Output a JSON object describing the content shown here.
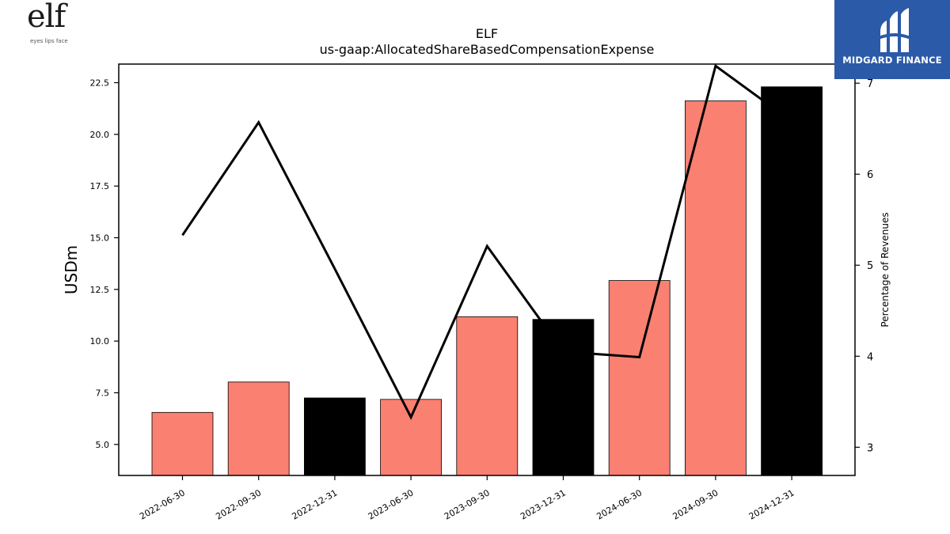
{
  "chart_data": {
    "type": "bar",
    "ticker": "ELF",
    "title": "us-gaap:AllocatedShareBasedCompensationExpense",
    "ylabel": "USDm",
    "y2label": "Percentage of Revenues",
    "categories": [
      "2022-06-30",
      "2022-09-30",
      "2022-12-31",
      "2023-06-30",
      "2023-09-30",
      "2023-12-31",
      "2024-06-30",
      "2024-09-30",
      "2024-12-31"
    ],
    "series": [
      {
        "type": "bar",
        "values": [
          6.55,
          8.02,
          7.25,
          7.18,
          11.18,
          11.05,
          12.93,
          21.62,
          22.3
        ],
        "bar_colors": [
          "#fa8072",
          "#fa8072",
          "#000000",
          "#fa8072",
          "#fa8072",
          "#000000",
          "#fa8072",
          "#fa8072",
          "#000000"
        ]
      },
      {
        "type": "line",
        "axis": "right",
        "color": "#000000",
        "values": [
          5.33,
          6.57,
          4.96,
          3.33,
          5.21,
          4.05,
          3.99,
          7.19,
          6.58
        ]
      }
    ],
    "ylim": [
      3.5,
      23.4
    ],
    "yticks": [
      5.0,
      7.5,
      10.0,
      12.5,
      15.0,
      17.5,
      20.0,
      22.5
    ],
    "y2lim": [
      2.69,
      7.21
    ],
    "y2ticks": [
      3,
      4,
      5,
      6,
      7
    ],
    "grid": false
  },
  "logos": {
    "elf": {
      "mark": "e.l.f.",
      "tagline": "eyes lips face"
    },
    "midgard": {
      "name": "MIDGARD FINANCE",
      "bg": "#2b5aa8"
    }
  }
}
